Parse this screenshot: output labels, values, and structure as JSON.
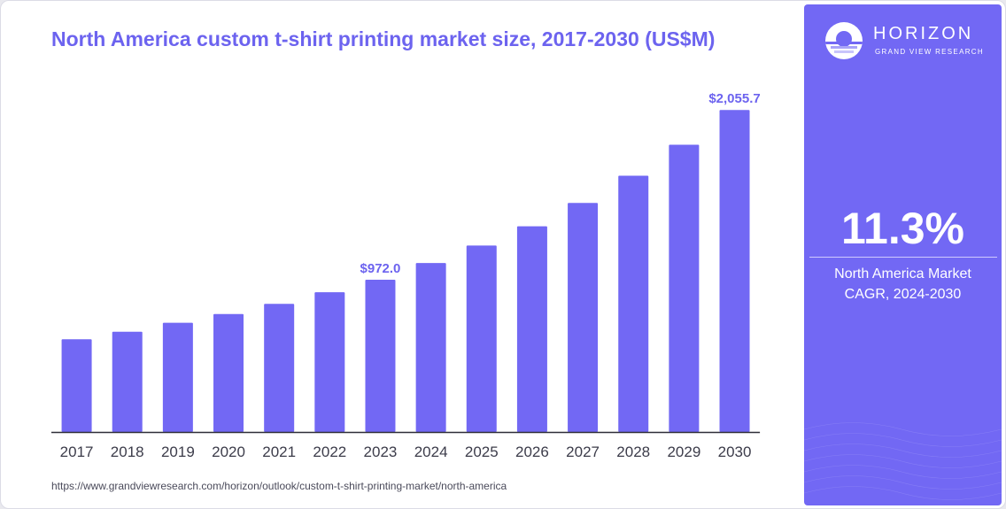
{
  "chart_data": {
    "type": "bar",
    "title": "North America custom t-shirt printing market size, 2017-2030 (US$M)",
    "categories": [
      "2017",
      "2018",
      "2019",
      "2020",
      "2021",
      "2022",
      "2023",
      "2024",
      "2025",
      "2026",
      "2027",
      "2028",
      "2029",
      "2030"
    ],
    "values": [
      592,
      640,
      697,
      753,
      818,
      892,
      972,
      1079,
      1190,
      1313,
      1462,
      1636,
      1834,
      2055.7
    ],
    "data_labels": [
      {
        "category": "2023",
        "text": "$972.0"
      },
      {
        "category": "2030",
        "text": "$2,055.7"
      }
    ],
    "ylim": [
      0,
      2300
    ],
    "grid": false,
    "bar_color": "#7268f4"
  },
  "source": "https://www.grandviewresearch.com/horizon/outlook/custom-t-shirt-printing-market/north-america",
  "panel": {
    "brand": "HORIZON",
    "brand_sub": "GRAND VIEW RESEARCH",
    "cagr_value": "11.3%",
    "cagr_label_line1": "North America Market",
    "cagr_label_line2": "CAGR, 2024-2030",
    "background": "#7268f4"
  }
}
